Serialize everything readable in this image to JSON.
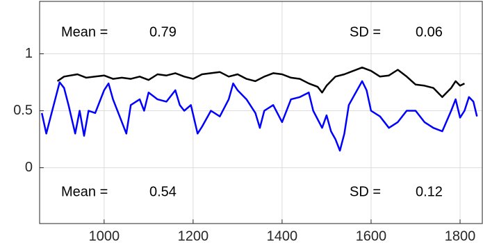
{
  "chart_data": {
    "type": "line",
    "annotations": [
      "Mean =",
      "0.79",
      "SD =",
      "0.06",
      "Mean =",
      "0.54",
      "SD =",
      "0.12"
    ],
    "series": [
      {
        "color": "#000000",
        "x": [
          895,
          910,
          940,
          960,
          980,
          1000,
          1020,
          1040,
          1060,
          1080,
          1100,
          1120,
          1140,
          1160,
          1180,
          1200,
          1220,
          1240,
          1260,
          1280,
          1300,
          1320,
          1340,
          1360,
          1380,
          1400,
          1420,
          1440,
          1460,
          1480,
          1490,
          1500,
          1520,
          1540,
          1560,
          1580,
          1600,
          1620,
          1640,
          1660,
          1680,
          1700,
          1720,
          1740,
          1760,
          1780,
          1790,
          1800,
          1810
        ],
        "values": [
          0.76,
          0.8,
          0.82,
          0.79,
          0.8,
          0.81,
          0.78,
          0.79,
          0.78,
          0.8,
          0.77,
          0.82,
          0.81,
          0.83,
          0.8,
          0.78,
          0.82,
          0.83,
          0.84,
          0.8,
          0.82,
          0.78,
          0.76,
          0.8,
          0.83,
          0.82,
          0.79,
          0.78,
          0.74,
          0.71,
          0.66,
          0.72,
          0.8,
          0.82,
          0.85,
          0.88,
          0.85,
          0.8,
          0.81,
          0.86,
          0.8,
          0.73,
          0.72,
          0.7,
          0.62,
          0.7,
          0.76,
          0.72,
          0.74
        ]
      },
      {
        "color": "#0000ff",
        "x": [
          860,
          870,
          880,
          890,
          900,
          910,
          920,
          935,
          945,
          955,
          965,
          980,
          1000,
          1010,
          1020,
          1035,
          1050,
          1060,
          1080,
          1090,
          1100,
          1120,
          1140,
          1160,
          1170,
          1180,
          1195,
          1210,
          1220,
          1240,
          1260,
          1280,
          1290,
          1300,
          1320,
          1340,
          1350,
          1360,
          1380,
          1400,
          1420,
          1440,
          1460,
          1470,
          1490,
          1500,
          1510,
          1520,
          1530,
          1540,
          1550,
          1560,
          1580,
          1590,
          1600,
          1620,
          1640,
          1660,
          1680,
          1700,
          1720,
          1740,
          1760,
          1780,
          1790,
          1800,
          1810,
          1820,
          1830,
          1838
        ],
        "values": [
          0.48,
          0.3,
          0.45,
          0.6,
          0.75,
          0.7,
          0.55,
          0.3,
          0.5,
          0.28,
          0.5,
          0.48,
          0.68,
          0.74,
          0.6,
          0.45,
          0.3,
          0.55,
          0.6,
          0.5,
          0.66,
          0.6,
          0.58,
          0.68,
          0.55,
          0.5,
          0.55,
          0.3,
          0.36,
          0.5,
          0.45,
          0.6,
          0.74,
          0.68,
          0.6,
          0.48,
          0.35,
          0.5,
          0.55,
          0.4,
          0.6,
          0.62,
          0.66,
          0.5,
          0.35,
          0.46,
          0.32,
          0.25,
          0.15,
          0.3,
          0.55,
          0.62,
          0.76,
          0.68,
          0.5,
          0.45,
          0.35,
          0.4,
          0.5,
          0.5,
          0.4,
          0.35,
          0.32,
          0.5,
          0.6,
          0.44,
          0.5,
          0.62,
          0.58,
          0.45
        ]
      }
    ],
    "xlim": [
      855,
      1850
    ],
    "ylim": [
      -0.49,
      1.46
    ],
    "xticks": [
      1000,
      1200,
      1400,
      1600,
      1800
    ],
    "yticks": [
      0,
      0.5,
      1
    ],
    "grid": true
  }
}
